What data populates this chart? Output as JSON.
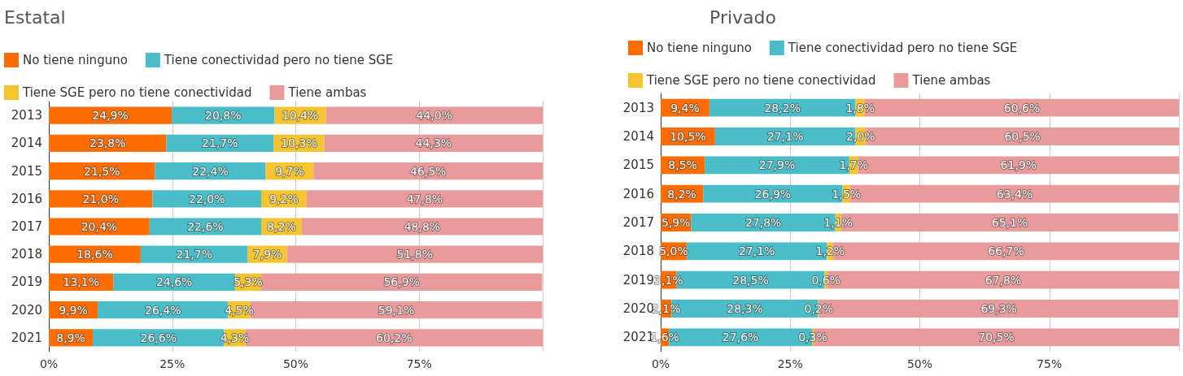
{
  "chart_data": [
    {
      "type": "bar",
      "title": "Estatal",
      "orientation": "horizontal",
      "stacked": true,
      "legend": "top",
      "grid": "x",
      "categories": [
        "2013",
        "2014",
        "2015",
        "2016",
        "2017",
        "2018",
        "2019",
        "2020",
        "2021"
      ],
      "xlim": [
        0,
        100
      ],
      "xticks": [
        {
          "value": 0,
          "label": "0%"
        },
        {
          "value": 25,
          "label": "25%"
        },
        {
          "value": 50,
          "label": "50%"
        },
        {
          "value": 75,
          "label": "75%"
        },
        {
          "value": 100,
          "label": null
        }
      ],
      "series": [
        {
          "name": "No tiene ninguno",
          "color": "#ff6d00",
          "values": [
            24.9,
            23.8,
            21.5,
            21.0,
            20.4,
            18.6,
            13.1,
            9.9,
            8.9
          ],
          "value_labels": [
            "24,9%",
            "23,8%",
            "21,5%",
            "21,0%",
            "20,4%",
            "18,6%",
            "13,1%",
            "9,9%",
            "8,9%"
          ]
        },
        {
          "name": "Tiene conectividad pero no tiene SGE",
          "color": "#4bbdc8",
          "values": [
            20.8,
            21.7,
            22.4,
            22.0,
            22.6,
            21.7,
            24.6,
            26.4,
            26.6
          ],
          "value_labels": [
            "20,8%",
            "21,7%",
            "22,4%",
            "22,0%",
            "22,6%",
            "21,7%",
            "24,6%",
            "26,4%",
            "26,6%"
          ]
        },
        {
          "name": "Tiene SGE pero no tiene conectividad",
          "color": "#f5c431",
          "values": [
            10.4,
            10.3,
            9.7,
            9.2,
            8.2,
            7.9,
            5.3,
            4.5,
            4.3
          ],
          "value_labels": [
            "10,4%",
            "10,3%",
            "9,7%",
            "9,2%",
            "8,2%",
            "7,9%",
            "5,3%",
            "4,5%",
            "4,3%"
          ]
        },
        {
          "name": "Tiene ambas",
          "color": "#e99b9b",
          "values": [
            44.0,
            44.3,
            46.5,
            47.8,
            48.8,
            51.8,
            56.9,
            59.1,
            60.2
          ],
          "value_labels": [
            "44,0%",
            "44,3%",
            "46,5%",
            "47,8%",
            "48,8%",
            "51,8%",
            "56,9%",
            "59,1%",
            "60,2%"
          ]
        }
      ]
    },
    {
      "type": "bar",
      "title": "Privado",
      "orientation": "horizontal",
      "stacked": true,
      "legend": "top",
      "grid": "x",
      "categories": [
        "2013",
        "2014",
        "2015",
        "2016",
        "2017",
        "2018",
        "2019",
        "2020",
        "2021"
      ],
      "xlim": [
        0,
        100
      ],
      "xticks": [
        {
          "value": 0,
          "label": "0%"
        },
        {
          "value": 25,
          "label": "25%"
        },
        {
          "value": 50,
          "label": "50%"
        },
        {
          "value": 75,
          "label": "75%"
        },
        {
          "value": 100,
          "label": null
        }
      ],
      "series": [
        {
          "name": "No tiene ninguno",
          "color": "#ff6d00",
          "values": [
            9.4,
            10.5,
            8.5,
            8.2,
            5.9,
            5.0,
            3.1,
            2.1,
            1.6
          ],
          "value_labels": [
            "9,4%",
            "10,5%",
            "8,5%",
            "8,2%",
            "5,9%",
            "5,0%",
            "3,1%",
            "2,1%",
            "1,6%"
          ]
        },
        {
          "name": "Tiene conectividad pero no tiene SGE",
          "color": "#4bbdc8",
          "values": [
            28.2,
            27.1,
            27.9,
            26.9,
            27.8,
            27.1,
            28.5,
            28.3,
            27.6
          ],
          "value_labels": [
            "28,2%",
            "27,1%",
            "27,9%",
            "26,9%",
            "27,8%",
            "27,1%",
            "28,5%",
            "28,3%",
            "27,6%"
          ]
        },
        {
          "name": "Tiene SGE pero no tiene conectividad",
          "color": "#f5c431",
          "values": [
            1.8,
            2.0,
            1.7,
            1.5,
            1.1,
            1.2,
            0.6,
            0.2,
            0.3
          ],
          "value_labels": [
            "1,8%",
            "2,0%",
            "1,7%",
            "1,5%",
            "1,1%",
            "1,2%",
            "0,6%",
            "0,2%",
            "0,3%"
          ]
        },
        {
          "name": "Tiene ambas",
          "color": "#e99b9b",
          "values": [
            60.6,
            60.5,
            61.9,
            63.4,
            65.1,
            66.7,
            67.8,
            69.3,
            70.5
          ],
          "value_labels": [
            "60,6%",
            "60,5%",
            "61,9%",
            "63,4%",
            "65,1%",
            "66,7%",
            "67,8%",
            "69,3%",
            "70,5%"
          ]
        }
      ]
    }
  ]
}
